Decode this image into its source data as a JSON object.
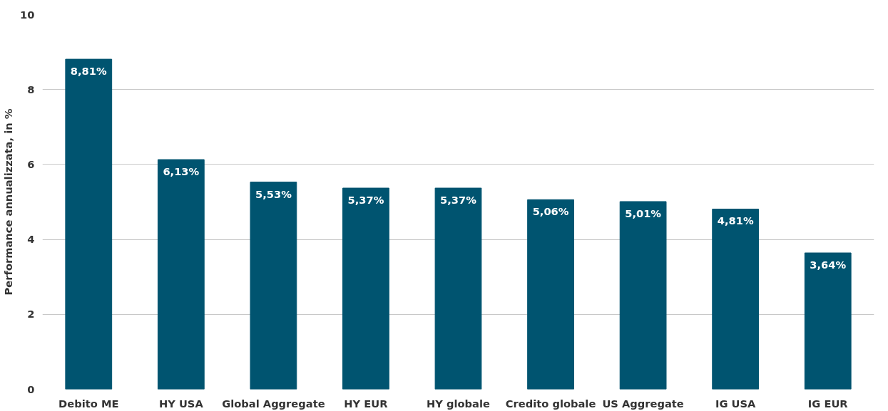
{
  "chart_data": {
    "type": "bar",
    "ylabel": "Performance annualizzata, in %",
    "categories": [
      "Debito ME",
      "HY USA",
      "Global Aggregate",
      "HY EUR",
      "HY globale",
      "Credito globale",
      "US Aggregate",
      "IG USA",
      "IG EUR"
    ],
    "values": [
      8.81,
      6.13,
      5.53,
      5.37,
      5.37,
      5.06,
      5.01,
      4.81,
      3.64
    ],
    "value_labels": [
      "8,81%",
      "6,13%",
      "5,53%",
      "5,37%",
      "5,37%",
      "5,06%",
      "5,01%",
      "4,81%",
      "3,64%"
    ],
    "color": "#005470",
    "ylim": [
      0,
      10
    ],
    "yticks": [
      0,
      2,
      4,
      6,
      8,
      10
    ],
    "grid": "y"
  }
}
